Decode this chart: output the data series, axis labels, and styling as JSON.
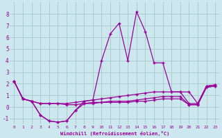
{
  "xlabel": "Windchill (Refroidissement éolien,°C)",
  "xlim": [
    -0.5,
    23.5
  ],
  "ylim": [
    -1.5,
    9.0
  ],
  "xticks": [
    0,
    1,
    2,
    3,
    4,
    5,
    6,
    7,
    8,
    9,
    10,
    11,
    12,
    13,
    14,
    15,
    16,
    17,
    18,
    19,
    20,
    21,
    22,
    23
  ],
  "yticks": [
    -1,
    0,
    1,
    2,
    3,
    4,
    5,
    6,
    7,
    8
  ],
  "bg_color": "#cce8ee",
  "line_color": "#990099",
  "grid_color": "#aacccc",
  "lines": [
    {
      "x": [
        0,
        1,
        2,
        3,
        4,
        5,
        6,
        7,
        8,
        9,
        10,
        11,
        12,
        13,
        14,
        15,
        16,
        17,
        18,
        19,
        20,
        21,
        22,
        23
      ],
      "y": [
        2.2,
        0.7,
        0.5,
        -0.7,
        -1.2,
        -1.3,
        -1.2,
        -0.3,
        0.5,
        0.6,
        4.0,
        6.3,
        7.2,
        4.0,
        8.2,
        6.5,
        3.8,
        3.8,
        1.3,
        1.3,
        1.3,
        0.3,
        1.8,
        1.9
      ]
    },
    {
      "x": [
        0,
        1,
        2,
        3,
        4,
        5,
        6,
        7,
        8,
        9,
        10,
        11,
        12,
        13,
        14,
        15,
        16,
        17,
        18,
        19,
        20,
        21,
        22,
        23
      ],
      "y": [
        2.2,
        0.7,
        0.5,
        0.3,
        0.3,
        0.3,
        0.3,
        0.4,
        0.5,
        0.6,
        0.7,
        0.8,
        0.9,
        1.0,
        1.1,
        1.2,
        1.3,
        1.3,
        1.3,
        1.3,
        0.3,
        0.3,
        1.8,
        1.9
      ]
    },
    {
      "x": [
        0,
        1,
        2,
        3,
        4,
        5,
        6,
        7,
        8,
        9,
        10,
        11,
        12,
        13,
        14,
        15,
        16,
        17,
        18,
        19,
        20,
        21,
        22,
        23
      ],
      "y": [
        2.2,
        0.7,
        0.5,
        -0.7,
        -1.2,
        -1.3,
        -1.2,
        -0.3,
        0.3,
        0.4,
        0.4,
        0.5,
        0.5,
        0.5,
        0.6,
        0.7,
        0.8,
        0.9,
        0.9,
        0.9,
        0.2,
        0.2,
        1.7,
        1.8
      ]
    },
    {
      "x": [
        0,
        1,
        2,
        3,
        4,
        5,
        6,
        7,
        8,
        9,
        10,
        11,
        12,
        13,
        14,
        15,
        16,
        17,
        18,
        19,
        20,
        21,
        22,
        23
      ],
      "y": [
        2.2,
        0.7,
        0.5,
        0.3,
        0.3,
        0.3,
        0.2,
        0.2,
        0.3,
        0.3,
        0.4,
        0.4,
        0.4,
        0.4,
        0.5,
        0.5,
        0.6,
        0.7,
        0.7,
        0.7,
        0.2,
        0.2,
        1.7,
        1.8
      ]
    }
  ]
}
